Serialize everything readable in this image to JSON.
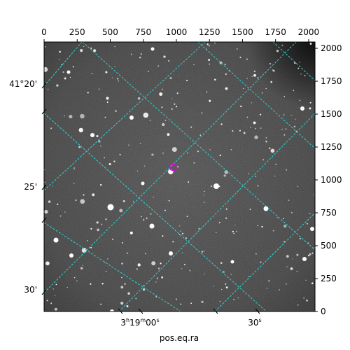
{
  "figure": {
    "xlabel": "pos.eq.ra",
    "pixel_axis": {
      "top_ticks": [
        "0",
        "250",
        "500",
        "750",
        "1000",
        "1250",
        "1500",
        "1750",
        "2000"
      ],
      "right_ticks": [
        "0",
        "250",
        "500",
        "750",
        "1000",
        "1250",
        "1500",
        "1750",
        "2000"
      ]
    },
    "world_axis": {
      "ra_ticks": [
        {
          "hms": "3",
          "h": "h",
          "m_val": "19",
          "m": "m",
          "s_val": "00",
          "s": "s"
        },
        {
          "hms": "",
          "h": "",
          "m_val": "",
          "m": "",
          "s_val": "30",
          "s": "s"
        }
      ],
      "dec_ticks": [
        "41°20'",
        "25'",
        "30'"
      ]
    },
    "grid_color": "#2fd3d3",
    "marker_color": "#e000e0",
    "image_colormap": "gray"
  }
}
